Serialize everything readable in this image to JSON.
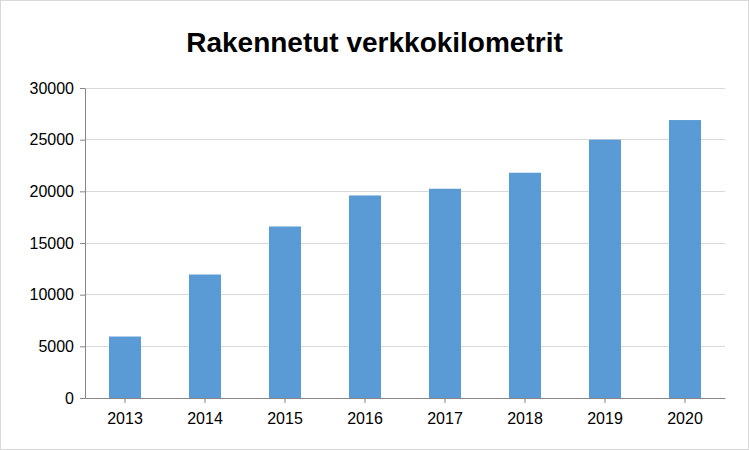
{
  "chart_data": {
    "type": "bar",
    "title": "Rakennetut verkkokilometrit",
    "categories": [
      "2013",
      "2014",
      "2015",
      "2016",
      "2017",
      "2018",
      "2019",
      "2020"
    ],
    "values": [
      5950,
      11950,
      16600,
      19600,
      20250,
      21800,
      25000,
      26900
    ],
    "color": "#5b9bd5",
    "ylim": [
      0,
      30000
    ],
    "yticks": [
      0,
      5000,
      10000,
      15000,
      20000,
      25000,
      30000
    ],
    "grid": true
  }
}
